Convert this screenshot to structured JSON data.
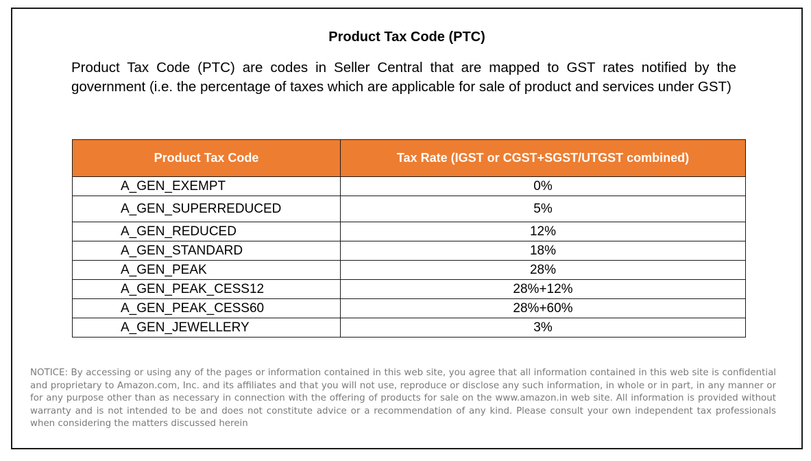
{
  "document": {
    "title": "Product Tax Code (PTC)",
    "intro": "Product Tax Code (PTC) are codes in Seller Central that are mapped to GST rates notified by the government (i.e. the percentage of taxes which are applicable for sale of product and services under GST)",
    "table": {
      "headers": [
        "Product Tax Code",
        "Tax Rate (IGST or CGST+SGST/UTGST combined)"
      ],
      "header_color": "#ed7d31",
      "rows": [
        {
          "code": "A_GEN_EXEMPT",
          "rate": "0%"
        },
        {
          "code": "A_GEN_SUPERREDUCED",
          "rate": "5%"
        },
        {
          "code": "A_GEN_REDUCED",
          "rate": "12%"
        },
        {
          "code": "A_GEN_STANDARD",
          "rate": "18%"
        },
        {
          "code": "A_GEN_PEAK",
          "rate": "28%"
        },
        {
          "code": "A_GEN_PEAK_CESS12",
          "rate": "28%+12%"
        },
        {
          "code": "A_GEN_PEAK_CESS60",
          "rate": "28%+60%"
        },
        {
          "code": "A_GEN_JEWELLERY",
          "rate": "3%"
        }
      ]
    },
    "notice": "NOTICE: By accessing or using any of the pages or information contained in this web site, you agree that all information contained in this web site is confidential and proprietary to Amazon.com, Inc. and its affiliates and that you will not use, reproduce or disclose any such information, in whole or in part, in any manner or for any purpose other than as necessary in connection with the offering of products for sale on the www.amazon.in web site. All information is provided without warranty and is not intended to be and does not constitute advice or a recommendation of any kind. Please consult your own independent tax professionals when considering the matters discussed herein"
  }
}
